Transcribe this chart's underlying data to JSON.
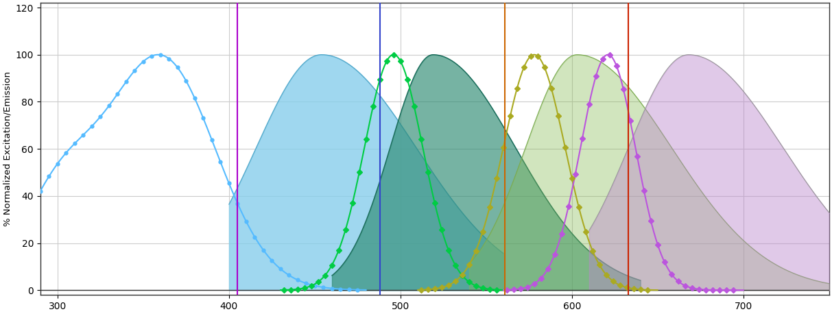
{
  "xlim": [
    290,
    750
  ],
  "ylim": [
    -2,
    122
  ],
  "ylabel": "% Normalized Excitation/Emission",
  "yticks": [
    0,
    20,
    40,
    60,
    80,
    100,
    120
  ],
  "xticks": [
    300,
    400,
    500,
    600,
    700
  ],
  "bg_color": "#ffffff",
  "grid_color": "#cccccc",
  "laser_lines": [
    {
      "x": 405,
      "color": "#aa00cc"
    },
    {
      "x": 488,
      "color": "#3344cc"
    },
    {
      "x": 561,
      "color": "#cc6600"
    },
    {
      "x": 633,
      "color": "#cc2200"
    }
  ]
}
